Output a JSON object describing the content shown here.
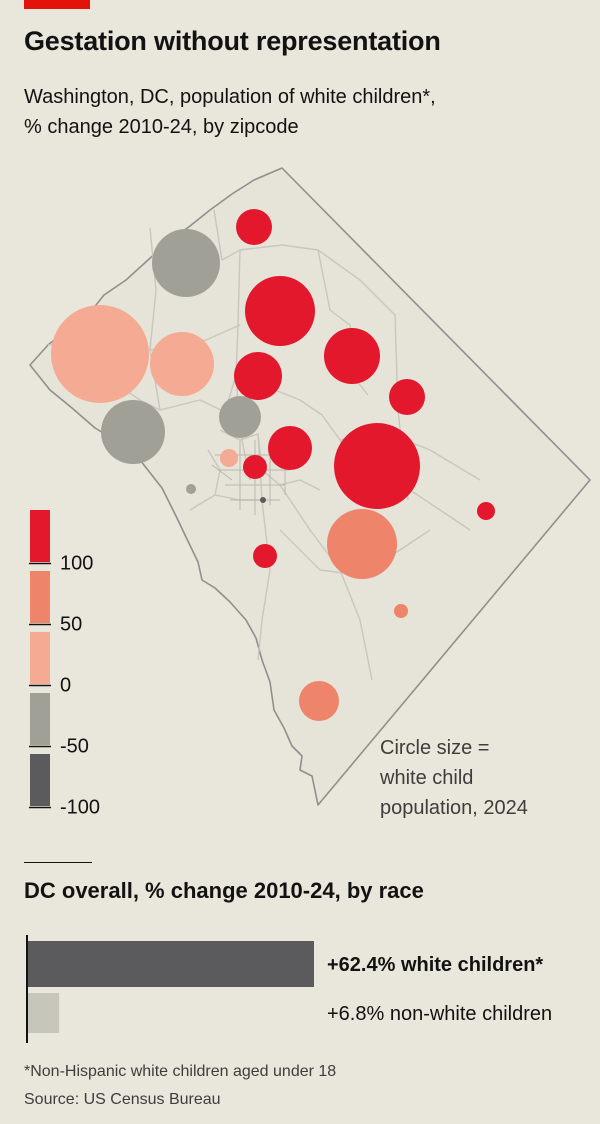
{
  "header": {
    "title": "Gestation without representation",
    "subtitle_line1": "Washington, DC, population of white children*,",
    "subtitle_line2": "% change 2010-24, by zipcode"
  },
  "map": {
    "size_note_line1": "Circle size =",
    "size_note_line2": "white child",
    "size_note_line3": "population, 2024"
  },
  "chart_data": [
    {
      "type": "scatter",
      "title": "Washington, DC, population of white children*, % change 2010-24, by zipcode",
      "color_scale": {
        "tick_labels": [
          "100",
          "50",
          "0",
          "-50",
          "-100"
        ],
        "bins": [
          {
            "range": [
              100,
              150
            ],
            "color": "#e3182d"
          },
          {
            "range": [
              50,
              100
            ],
            "color": "#ee8469"
          },
          {
            "range": [
              0,
              50
            ],
            "color": "#f5aa94"
          },
          {
            "range": [
              -50,
              0
            ],
            "color": "#a1a097"
          },
          {
            "range": [
              -100,
              -50
            ],
            "color": "#5b5b5d"
          }
        ]
      },
      "size_encoding": "white child population, 2024",
      "circles": [
        {
          "bin": 0,
          "size": 18
        },
        {
          "bin": 3,
          "size": 34
        },
        {
          "bin": 0,
          "size": 35
        },
        {
          "bin": 2,
          "size": 49
        },
        {
          "bin": 2,
          "size": 32
        },
        {
          "bin": 0,
          "size": 28
        },
        {
          "bin": 0,
          "size": 24
        },
        {
          "bin": 3,
          "size": 32
        },
        {
          "bin": 3,
          "size": 21
        },
        {
          "bin": 0,
          "size": 18
        },
        {
          "bin": 0,
          "size": 22
        },
        {
          "bin": 0,
          "size": 43
        },
        {
          "bin": 0,
          "size": 12
        },
        {
          "bin": 2,
          "size": 9
        },
        {
          "bin": 1,
          "size": 35
        },
        {
          "bin": 0,
          "size": 9
        },
        {
          "bin": 0,
          "size": 12
        },
        {
          "bin": 1,
          "size": 7
        },
        {
          "bin": 1,
          "size": 20
        },
        {
          "bin": 3,
          "size": 5
        },
        {
          "bin": 4,
          "size": 3
        }
      ]
    },
    {
      "type": "bar",
      "title": "DC overall, % change 2010-24, by race",
      "categories": [
        "white children*",
        "non-white children"
      ],
      "values": [
        62.4,
        6.8
      ],
      "labels": [
        "+62.4% white children*",
        "+6.8% non-white children"
      ],
      "colors": [
        "#5b5b5d",
        "#c7c6ba"
      ]
    }
  ],
  "footnote": "*Non-Hispanic white children aged under 18",
  "source": "Source: US Census Bureau"
}
